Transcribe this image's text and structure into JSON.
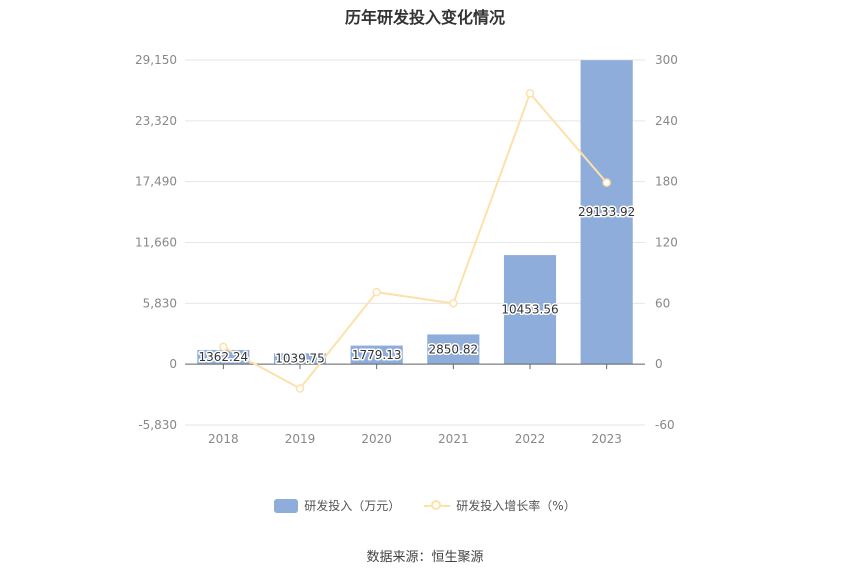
{
  "chart_data": {
    "title": "历年研发投入变化情况",
    "type": "bar+line",
    "categories": [
      "2018",
      "2019",
      "2020",
      "2021",
      "2022",
      "2023"
    ],
    "left_axis": {
      "min": -5830,
      "max": 29150,
      "ticks": [
        "29,150",
        "23,320",
        "17,490",
        "11,660",
        "5,830",
        "0",
        "-5,830"
      ]
    },
    "right_axis": {
      "min": -60,
      "max": 300,
      "ticks": [
        "300",
        "240",
        "180",
        "120",
        "60",
        "0",
        "-60"
      ]
    },
    "series": [
      {
        "name": "研发投入（万元）",
        "type": "bar",
        "axis": "left",
        "color": "#8eaddb",
        "values": [
          1362.24,
          1039.75,
          1779.13,
          2850.82,
          10453.56,
          29133.92
        ],
        "labels": [
          "1362.24",
          "1039.75",
          "1779.13",
          "2850.82",
          "10453.56",
          "29133.92"
        ]
      },
      {
        "name": "研发投入增长率（%）",
        "type": "line",
        "axis": "right",
        "color": "#fde1aa",
        "values": [
          17,
          -24,
          71,
          60,
          267,
          179
        ]
      }
    ],
    "grid": true,
    "legend_position": "bottom"
  },
  "source": "数据来源：恒生聚源"
}
